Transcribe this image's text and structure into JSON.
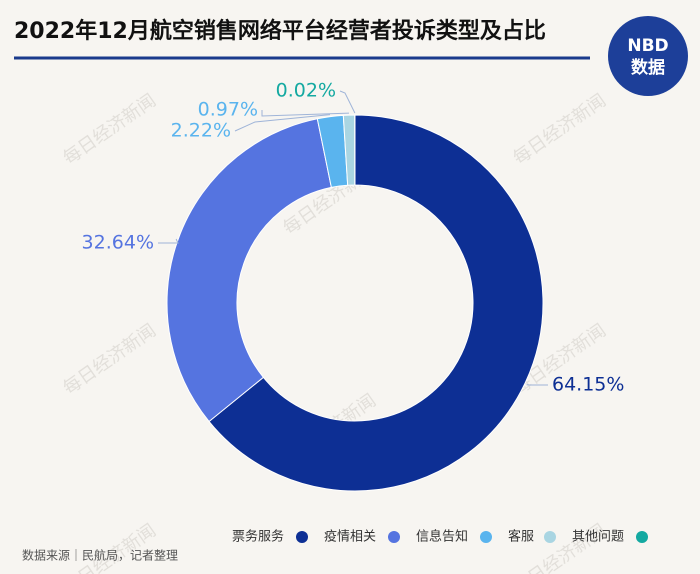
{
  "chart_data": {
    "type": "pie",
    "title": "2022年12月航空销售网络平台经营者投诉类型及占比",
    "categories": [
      "票务服务",
      "疫情相关",
      "信息告知",
      "客服",
      "其他问题"
    ],
    "values": [
      64.15,
      32.64,
      2.22,
      0.97,
      0.02
    ],
    "value_labels": [
      "64.15%",
      "32.64%",
      "2.22%",
      "0.97%",
      "0.02%"
    ],
    "colors": [
      "#0d2f94",
      "#5574e0",
      "#5ab4ee",
      "#a9d5e2",
      "#14a9a1"
    ],
    "source": "数据来源｜民航局，记者整理",
    "logo": [
      "NBD",
      "数据"
    ],
    "watermark": "每日经济新闻"
  }
}
